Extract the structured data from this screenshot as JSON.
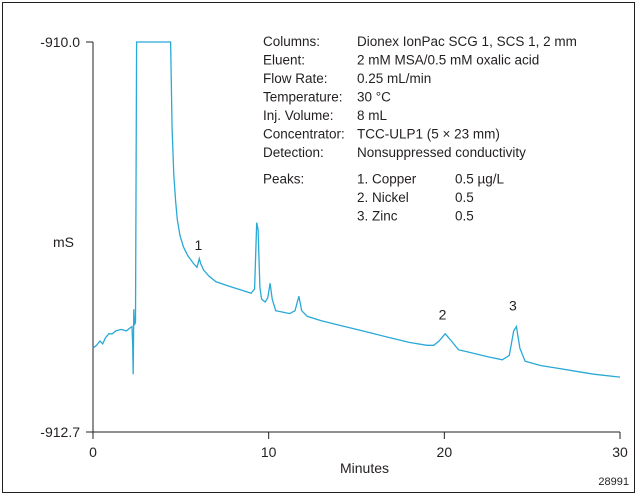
{
  "chart_data": {
    "type": "line",
    "title": "",
    "xlabel": "Minutes",
    "ylabel": "mS",
    "xlim": [
      0,
      30
    ],
    "ylim": [
      -912.7,
      -910.0
    ],
    "x_ticks": [
      "0",
      "10",
      "20",
      "30"
    ],
    "y_ticks": [
      "-910.0",
      "-912.7"
    ],
    "grid": false,
    "legend": "none",
    "line_color": "#29a9d6",
    "figure_id": "28991",
    "series": [
      {
        "name": "",
        "points": [
          [
            0.0,
            -912.12
          ],
          [
            0.2,
            -912.1
          ],
          [
            0.4,
            -912.07
          ],
          [
            0.55,
            -912.09
          ],
          [
            0.7,
            -912.05
          ],
          [
            0.9,
            -912.02
          ],
          [
            1.1,
            -912.02
          ],
          [
            1.3,
            -912.0
          ],
          [
            1.6,
            -911.99
          ],
          [
            1.9,
            -912.0
          ],
          [
            2.1,
            -911.98
          ],
          [
            2.22,
            -911.97
          ],
          [
            2.26,
            -912.1
          ],
          [
            2.29,
            -912.3
          ],
          [
            2.32,
            -911.85
          ],
          [
            2.36,
            -911.96
          ],
          [
            2.42,
            -911.94
          ],
          [
            2.48,
            -910.0
          ],
          [
            4.42,
            -910.0
          ],
          [
            4.5,
            -910.6
          ],
          [
            4.6,
            -910.92
          ],
          [
            4.7,
            -911.1
          ],
          [
            4.8,
            -911.23
          ],
          [
            4.95,
            -911.34
          ],
          [
            5.15,
            -911.42
          ],
          [
            5.4,
            -911.48
          ],
          [
            5.7,
            -911.53
          ],
          [
            5.92,
            -911.56
          ],
          [
            6.05,
            -911.5
          ],
          [
            6.15,
            -911.54
          ],
          [
            6.3,
            -911.58
          ],
          [
            6.6,
            -911.62
          ],
          [
            7.0,
            -911.66
          ],
          [
            7.5,
            -911.68
          ],
          [
            8.0,
            -911.7
          ],
          [
            8.5,
            -911.72
          ],
          [
            9.0,
            -911.74
          ],
          [
            9.2,
            -911.71
          ],
          [
            9.32,
            -911.25
          ],
          [
            9.4,
            -911.3
          ],
          [
            9.5,
            -911.7
          ],
          [
            9.6,
            -911.78
          ],
          [
            9.8,
            -911.8
          ],
          [
            9.95,
            -911.77
          ],
          [
            10.08,
            -911.67
          ],
          [
            10.2,
            -911.78
          ],
          [
            10.4,
            -911.86
          ],
          [
            10.8,
            -911.87
          ],
          [
            11.2,
            -911.88
          ],
          [
            11.5,
            -911.86
          ],
          [
            11.72,
            -911.76
          ],
          [
            11.88,
            -911.86
          ],
          [
            12.2,
            -911.9
          ],
          [
            13.0,
            -911.93
          ],
          [
            14.0,
            -911.96
          ],
          [
            15.0,
            -911.99
          ],
          [
            16.0,
            -912.02
          ],
          [
            17.0,
            -912.05
          ],
          [
            18.0,
            -912.08
          ],
          [
            19.0,
            -912.1
          ],
          [
            19.4,
            -912.1
          ],
          [
            19.7,
            -912.07
          ],
          [
            20.05,
            -912.02
          ],
          [
            20.4,
            -912.07
          ],
          [
            20.8,
            -912.13
          ],
          [
            21.5,
            -912.15
          ],
          [
            22.5,
            -912.18
          ],
          [
            23.3,
            -912.2
          ],
          [
            23.7,
            -912.17
          ],
          [
            23.95,
            -912.0
          ],
          [
            24.1,
            -911.97
          ],
          [
            24.3,
            -912.12
          ],
          [
            24.6,
            -912.21
          ],
          [
            25.5,
            -912.24
          ],
          [
            26.5,
            -912.26
          ],
          [
            27.5,
            -912.28
          ],
          [
            28.5,
            -912.3
          ],
          [
            30.0,
            -912.32
          ]
        ]
      }
    ],
    "annotations": [
      {
        "text": "1",
        "x": 6.0,
        "y": -911.44
      },
      {
        "text": "2",
        "x": 19.9,
        "y": -911.92
      },
      {
        "text": "3",
        "x": 23.9,
        "y": -911.86
      }
    ],
    "conditions": [
      {
        "label": "Columns:",
        "value": "Dionex IonPac SCG 1, SCS 1, 2 mm"
      },
      {
        "label": "Eluent:",
        "value": "2 mM MSA/0.5 mM oxalic acid"
      },
      {
        "label": "Flow Rate:",
        "value": "0.25 mL/min"
      },
      {
        "label": "Temperature:",
        "value": "30 °C"
      },
      {
        "label": "Inj. Volume:",
        "value": "8 mL"
      },
      {
        "label": "Concentrator:",
        "value": "TCC-ULP1 (5 × 23 mm)"
      },
      {
        "label": "Detection:",
        "value": "Nonsuppressed conductivity"
      }
    ],
    "peaks_label": "Peaks:",
    "peaks": [
      {
        "name": "1. Copper",
        "amount": "0.5 µg/L"
      },
      {
        "name": "2. Nickel",
        "amount": "0.5"
      },
      {
        "name": "3. Zinc",
        "amount": "0.5"
      }
    ]
  }
}
